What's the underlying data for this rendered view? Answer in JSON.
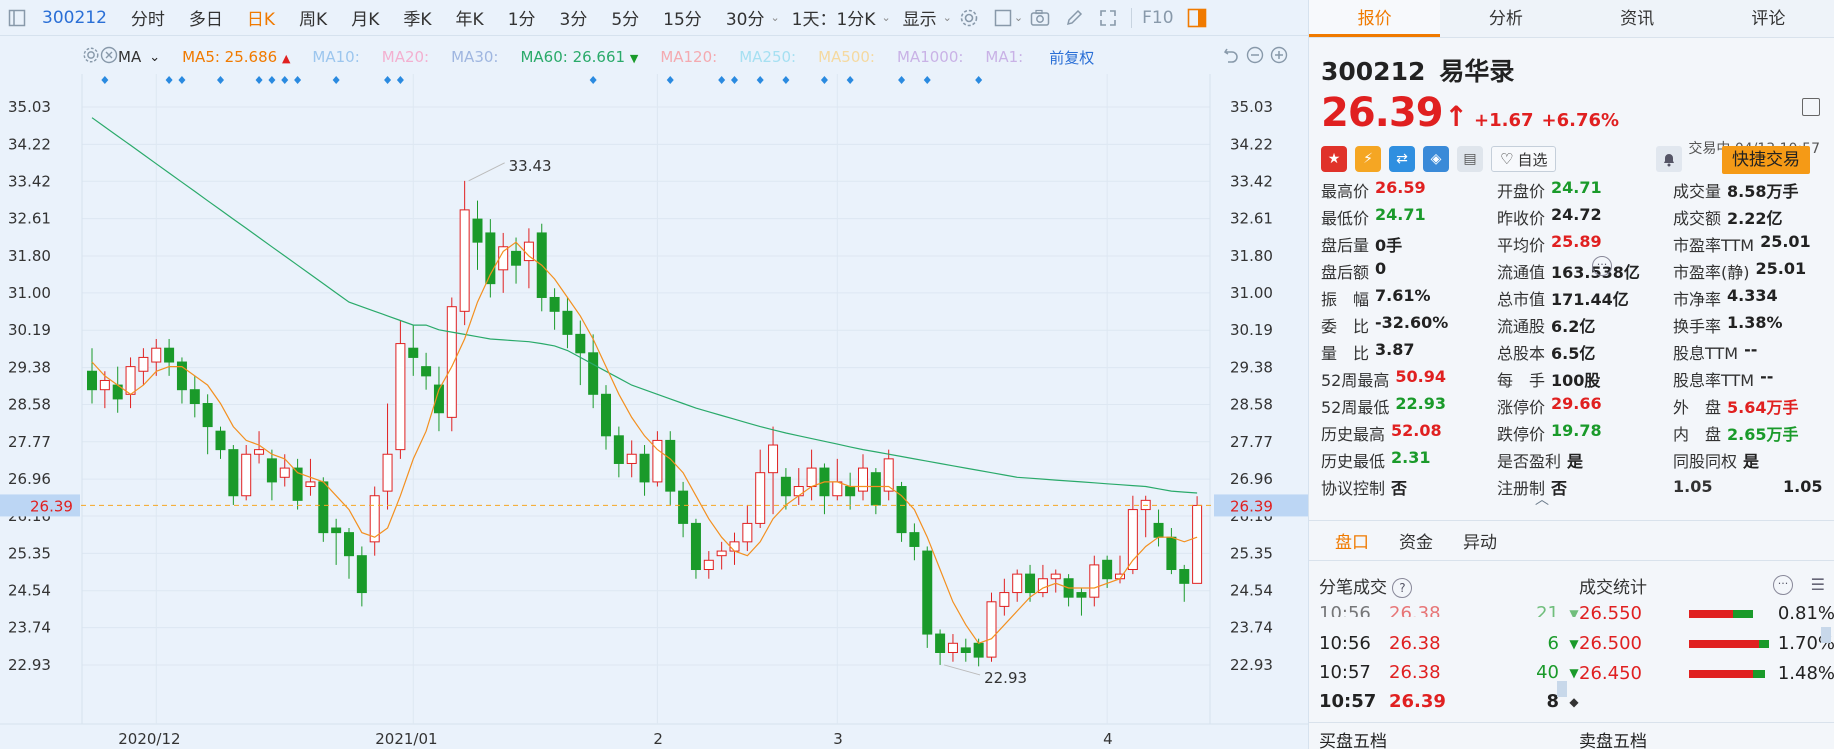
{
  "toolbar": {
    "code": "300212",
    "items": [
      "分时",
      "多日",
      "日K",
      "周K",
      "月K",
      "季K",
      "年K",
      "1分",
      "3分",
      "5分",
      "15分",
      "30分"
    ],
    "active": "日K",
    "compare": "1天：1分K",
    "display": "显示",
    "f10": "F10"
  },
  "mabar": {
    "indicator": "MA",
    "ma5": "MA5: 25.686",
    "ma10": "MA10:",
    "ma20": "MA20:",
    "ma30": "MA30:",
    "ma60": "MA60: 26.661",
    "ma120": "MA120:",
    "ma250": "MA250:",
    "ma500": "MA500:",
    "ma1000": "MA1000:",
    "ma1": "MA1:",
    "adjust": "前复权",
    "colors": {
      "ma5": "#f07a00",
      "ma60": "#2aaa6a",
      "ma10": "#9cc6ee",
      "ma20": "#f3b0d0",
      "ma30": "#9fb6e0",
      "ma120": "#f4aab0",
      "ma250": "#a6e0f2",
      "ma500": "#f5d9a0",
      "ma1000": "#c9b2e6"
    }
  },
  "chart_data": {
    "type": "candlestick",
    "yticks": [
      35.03,
      34.22,
      33.42,
      32.61,
      31.8,
      31.0,
      30.19,
      29.38,
      28.58,
      27.77,
      26.96,
      26.16,
      25.35,
      24.54,
      23.74,
      22.93
    ],
    "ylim": [
      22.3,
      35.4
    ],
    "xlabels": [
      {
        "label": "2020/12",
        "index": 5
      },
      {
        "label": "2021/01",
        "index": 25
      },
      {
        "label": "2",
        "index": 44
      },
      {
        "label": "3",
        "index": 58
      },
      {
        "label": "4",
        "index": 79
      }
    ],
    "current_price": 26.39,
    "annotations": [
      {
        "label": "33.43",
        "index": 29,
        "value": 33.43
      },
      {
        "label": "22.93",
        "index": 66,
        "value": 22.93
      }
    ],
    "candles": [
      [
        29.3,
        28.9,
        29.8,
        28.6
      ],
      [
        28.9,
        29.1,
        29.3,
        28.5
      ],
      [
        29.0,
        28.7,
        29.4,
        28.4
      ],
      [
        28.8,
        29.4,
        29.6,
        28.5
      ],
      [
        29.3,
        29.6,
        29.8,
        29.0
      ],
      [
        29.5,
        29.8,
        30.0,
        29.2
      ],
      [
        29.8,
        29.5,
        30.0,
        29.2
      ],
      [
        29.5,
        28.9,
        29.6,
        28.6
      ],
      [
        28.9,
        28.6,
        29.2,
        28.3
      ],
      [
        28.6,
        28.1,
        28.8,
        27.5
      ],
      [
        28.0,
        27.6,
        28.1,
        27.4
      ],
      [
        27.6,
        26.6,
        27.7,
        26.4
      ],
      [
        26.6,
        27.5,
        27.7,
        26.5
      ],
      [
        27.5,
        27.6,
        28.0,
        27.3
      ],
      [
        27.4,
        26.9,
        27.6,
        26.5
      ],
      [
        27.0,
        27.2,
        27.5,
        26.8
      ],
      [
        27.2,
        26.5,
        27.4,
        26.3
      ],
      [
        26.8,
        26.9,
        27.4,
        26.6
      ],
      [
        26.9,
        25.8,
        27.0,
        25.6
      ],
      [
        25.9,
        25.8,
        26.1,
        25.1
      ],
      [
        25.8,
        25.3,
        25.9,
        24.8
      ],
      [
        25.3,
        24.5,
        25.5,
        24.2
      ],
      [
        25.6,
        26.6,
        26.8,
        25.3
      ],
      [
        26.7,
        27.5,
        28.6,
        26.3
      ],
      [
        27.6,
        29.9,
        30.4,
        27.4
      ],
      [
        29.8,
        29.6,
        30.3,
        29.2
      ],
      [
        29.4,
        29.2,
        29.7,
        28.9
      ],
      [
        29.0,
        28.4,
        29.4,
        28.0
      ],
      [
        28.3,
        30.7,
        30.9,
        28.0
      ],
      [
        30.6,
        32.8,
        33.43,
        30.3
      ],
      [
        32.6,
        32.1,
        33.0,
        31.5
      ],
      [
        32.3,
        31.2,
        32.6,
        30.9
      ],
      [
        31.5,
        32.0,
        32.3,
        31.0
      ],
      [
        31.9,
        31.6,
        32.2,
        31.2
      ],
      [
        31.7,
        32.1,
        32.4,
        31.1
      ],
      [
        32.3,
        30.9,
        32.5,
        30.6
      ],
      [
        30.9,
        30.6,
        31.1,
        30.2
      ],
      [
        30.6,
        30.1,
        30.9,
        29.8
      ],
      [
        30.1,
        29.7,
        30.4,
        29.0
      ],
      [
        29.7,
        28.8,
        30.1,
        28.5
      ],
      [
        28.8,
        27.9,
        29.0,
        27.6
      ],
      [
        27.9,
        27.3,
        28.1,
        27.0
      ],
      [
        27.3,
        27.5,
        27.8,
        27.0
      ],
      [
        27.5,
        26.9,
        27.7,
        26.6
      ],
      [
        26.9,
        27.8,
        28.0,
        26.8
      ],
      [
        27.8,
        26.7,
        28.0,
        26.4
      ],
      [
        26.7,
        26.0,
        26.9,
        25.7
      ],
      [
        26.0,
        25.0,
        26.1,
        24.8
      ],
      [
        25.0,
        25.2,
        25.4,
        24.8
      ],
      [
        25.3,
        25.4,
        25.6,
        25.0
      ],
      [
        25.4,
        25.6,
        25.8,
        25.1
      ],
      [
        25.6,
        26.0,
        26.4,
        25.4
      ],
      [
        26.0,
        27.1,
        27.6,
        25.9
      ],
      [
        27.1,
        27.7,
        28.1,
        26.2
      ],
      [
        27.0,
        26.6,
        27.2,
        26.3
      ],
      [
        26.6,
        26.8,
        27.2,
        26.4
      ],
      [
        26.8,
        27.2,
        27.6,
        26.5
      ],
      [
        27.2,
        26.6,
        27.3,
        26.2
      ],
      [
        26.6,
        26.9,
        27.4,
        26.5
      ],
      [
        26.8,
        26.6,
        27.1,
        26.3
      ],
      [
        26.7,
        27.2,
        27.5,
        26.5
      ],
      [
        27.1,
        26.4,
        27.2,
        26.2
      ],
      [
        26.7,
        27.4,
        27.6,
        26.5
      ],
      [
        26.8,
        25.8,
        26.9,
        25.6
      ],
      [
        25.8,
        25.5,
        26.0,
        25.2
      ],
      [
        25.4,
        23.6,
        25.5,
        23.3
      ],
      [
        23.6,
        23.2,
        23.7,
        22.93
      ],
      [
        23.2,
        23.4,
        23.6,
        23.0
      ],
      [
        23.3,
        23.2,
        23.5,
        23.0
      ],
      [
        23.4,
        23.1,
        23.5,
        22.9
      ],
      [
        23.1,
        24.3,
        24.5,
        23.0
      ],
      [
        24.2,
        24.5,
        24.8,
        24.0
      ],
      [
        24.5,
        24.9,
        25.0,
        24.3
      ],
      [
        24.9,
        24.5,
        25.1,
        24.3
      ],
      [
        24.5,
        24.8,
        25.1,
        24.4
      ],
      [
        24.8,
        24.9,
        25.0,
        24.5
      ],
      [
        24.8,
        24.4,
        24.9,
        24.2
      ],
      [
        24.5,
        24.4,
        24.6,
        24.0
      ],
      [
        24.4,
        25.1,
        25.3,
        24.2
      ],
      [
        25.2,
        24.8,
        25.3,
        24.6
      ],
      [
        24.8,
        24.9,
        25.3,
        24.7
      ],
      [
        25.0,
        26.3,
        26.6,
        24.9
      ],
      [
        26.3,
        26.5,
        26.6,
        25.7
      ],
      [
        26.0,
        25.7,
        26.3,
        25.5
      ],
      [
        25.7,
        25.0,
        25.9,
        24.9
      ],
      [
        25.0,
        24.7,
        25.1,
        24.3
      ],
      [
        24.7,
        26.39,
        26.59,
        24.71
      ]
    ],
    "ma5": [
      29.5,
      29.2,
      29.0,
      28.8,
      29.0,
      29.3,
      29.4,
      29.4,
      29.2,
      29.0,
      28.6,
      28.1,
      27.8,
      27.7,
      27.5,
      27.4,
      27.1,
      27.0,
      26.9,
      26.6,
      26.3,
      25.8,
      25.7,
      25.9,
      26.6,
      27.4,
      28.0,
      28.9,
      29.4,
      30.0,
      30.8,
      31.4,
      31.9,
      32.1,
      31.8,
      31.6,
      31.3,
      30.9,
      30.5,
      30.0,
      29.4,
      28.8,
      28.3,
      27.9,
      27.6,
      27.4,
      27.1,
      26.6,
      26.1,
      25.7,
      25.4,
      25.3,
      25.6,
      26.1,
      26.4,
      26.6,
      26.8,
      26.9,
      26.9,
      26.8,
      26.8,
      26.8,
      26.8,
      26.6,
      26.3,
      25.7,
      25.0,
      24.3,
      23.8,
      23.4,
      23.5,
      23.8,
      24.1,
      24.4,
      24.6,
      24.7,
      24.6,
      24.6,
      24.6,
      24.7,
      24.8,
      25.2,
      25.5,
      25.7,
      25.7,
      25.6,
      25.7
    ],
    "ma60": [
      34.8,
      34.6,
      34.4,
      34.2,
      34.0,
      33.8,
      33.6,
      33.4,
      33.2,
      33.0,
      32.8,
      32.6,
      32.4,
      32.2,
      32.0,
      31.8,
      31.6,
      31.4,
      31.2,
      31.0,
      30.8,
      30.7,
      30.6,
      30.5,
      30.4,
      30.3,
      30.3,
      30.2,
      30.15,
      30.1,
      30.05,
      30.0,
      29.98,
      29.96,
      29.94,
      29.9,
      29.85,
      29.75,
      29.6,
      29.45,
      29.3,
      29.15,
      29.0,
      28.9,
      28.8,
      28.7,
      28.6,
      28.5,
      28.42,
      28.34,
      28.26,
      28.18,
      28.1,
      28.03,
      27.96,
      27.9,
      27.84,
      27.78,
      27.72,
      27.66,
      27.6,
      27.55,
      27.5,
      27.45,
      27.4,
      27.35,
      27.3,
      27.25,
      27.2,
      27.15,
      27.1,
      27.05,
      27.0,
      26.98,
      26.96,
      26.94,
      26.92,
      26.9,
      26.88,
      26.86,
      26.84,
      26.82,
      26.8,
      26.75,
      26.7,
      26.68,
      26.66
    ],
    "signal_markers": [
      1,
      6,
      7,
      10,
      13,
      14,
      15,
      16,
      19,
      23,
      24,
      39,
      45,
      49,
      50,
      52,
      54,
      57,
      59,
      63,
      65,
      69
    ]
  },
  "stock": {
    "code": "300212",
    "name": "易华录",
    "price": "26.39",
    "change": "+1.67",
    "pct": "+6.76%",
    "status_time": "交易中 04/13 10:57",
    "zixuan": "自选",
    "quick_trade": "快捷交易"
  },
  "right_tabs": [
    "报价",
    "分析",
    "资讯",
    "评论"
  ],
  "quote": [
    [
      [
        "最高价",
        "26.59",
        "red"
      ],
      [
        "开盘价",
        "24.71",
        "green"
      ],
      [
        "成交量",
        "8.58万手",
        "blk"
      ]
    ],
    [
      [
        "最低价",
        "24.71",
        "green"
      ],
      [
        "昨收价",
        "24.72",
        "blk"
      ],
      [
        "成交额",
        "2.22亿",
        "blk"
      ]
    ],
    [
      [
        "盘后量",
        "0手",
        "blk"
      ],
      [
        "平均价",
        "25.89",
        "red"
      ],
      [
        "市盈率TTM",
        "25.01",
        "blk"
      ]
    ],
    [
      [
        "盘后额",
        "0",
        "blk"
      ],
      [
        "流通值",
        "163.538亿",
        "blk"
      ],
      [
        "市盈率(静)",
        "25.01",
        "blk"
      ]
    ],
    [
      [
        "振　幅",
        "7.61%",
        "blk"
      ],
      [
        "总市值",
        "171.44亿",
        "blk"
      ],
      [
        "市净率",
        "4.334",
        "blk"
      ]
    ],
    [
      [
        "委　比",
        "-32.60%",
        "blk"
      ],
      [
        "流通股",
        "6.2亿",
        "blk"
      ],
      [
        "换手率",
        "1.38%",
        "blk"
      ]
    ],
    [
      [
        "量　比",
        "3.87",
        "blk"
      ],
      [
        "总股本",
        "6.5亿",
        "blk"
      ],
      [
        "股息TTM",
        "--",
        "blk"
      ]
    ],
    [
      [
        "52周最高",
        "50.94",
        "red"
      ],
      [
        "每　手",
        "100股",
        "blk"
      ],
      [
        "股息率TTM",
        "--",
        "blk"
      ]
    ],
    [
      [
        "52周最低",
        "22.93",
        "green"
      ],
      [
        "涨停价",
        "29.66",
        "red"
      ],
      [
        "外　盘",
        "5.64万手",
        "red"
      ]
    ],
    [
      [
        "历史最高",
        "52.08",
        "red"
      ],
      [
        "跌停价",
        "19.78",
        "green"
      ],
      [
        "内　盘",
        "2.65万手",
        "green"
      ]
    ],
    [
      [
        "历史最低",
        "2.31",
        "green"
      ],
      [
        "是否盈利",
        "是",
        "blk"
      ],
      [
        "同股同权",
        "是",
        "blk"
      ]
    ],
    [
      [
        "协议控制",
        "否",
        "blk"
      ],
      [
        "注册制",
        "否",
        "blk"
      ],
      [
        "1.05",
        "1.05",
        "blk"
      ]
    ]
  ],
  "sub_tabs": [
    "盘口",
    "资金",
    "异动"
  ],
  "trades_title": "分笔成交",
  "stats_title": "成交统计",
  "trades": [
    {
      "time": "10:56",
      "price": "26.38",
      "vol": "6",
      "dir": "▼"
    },
    {
      "time": "10:57",
      "price": "26.38",
      "vol": "40",
      "dir": "▼"
    },
    {
      "time": "10:57",
      "price": "26.39",
      "vol": "8",
      "dir": "◆"
    }
  ],
  "stats": [
    {
      "price": "26.550",
      "pct": "0.81%",
      "red": 0.55,
      "green": 0.25
    },
    {
      "price": "26.500",
      "pct": "1.70%",
      "red": 0.88,
      "green": 0.12
    },
    {
      "price": "26.450",
      "pct": "1.48%",
      "red": 0.8,
      "green": 0.15
    }
  ],
  "book": {
    "buy": "买盘五档",
    "sell": "卖盘五档"
  }
}
